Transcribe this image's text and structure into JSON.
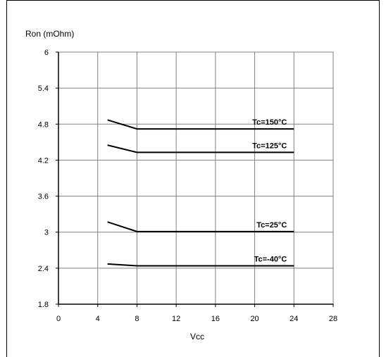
{
  "chart_data": {
    "type": "line",
    "title": "",
    "ylabel": "Ron (mOhm)",
    "xlabel": "Vcc",
    "xlim": [
      0,
      28
    ],
    "ylim": [
      1.8,
      6
    ],
    "x_ticks": [
      0,
      4,
      8,
      12,
      16,
      20,
      24,
      28
    ],
    "y_ticks": [
      1.8,
      2.4,
      3,
      3.6,
      4.2,
      4.8,
      5.4,
      6
    ],
    "grid": true,
    "legend": "none",
    "series": [
      {
        "name": "Tc=150°C",
        "x": [
          5,
          8,
          24
        ],
        "y": [
          4.87,
          4.72,
          4.72
        ]
      },
      {
        "name": "Tc=125°C",
        "x": [
          5,
          8,
          24
        ],
        "y": [
          4.45,
          4.33,
          4.33
        ]
      },
      {
        "name": "Tc=25°C",
        "x": [
          5,
          8,
          24
        ],
        "y": [
          3.17,
          3.01,
          3.01
        ]
      },
      {
        "name": "Tc=-40°C",
        "x": [
          5,
          8,
          24
        ],
        "y": [
          2.47,
          2.44,
          2.44
        ]
      }
    ]
  },
  "colors": {
    "grid": "#808080",
    "axis": "#000000",
    "line": "#000000"
  }
}
